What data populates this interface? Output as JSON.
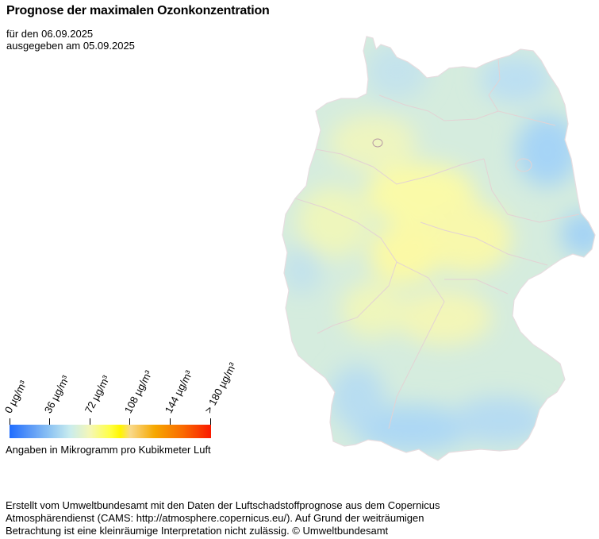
{
  "title": "Prognose der maximalen Ozonkonzentration",
  "subtitle": {
    "forecast_date": "für den 06.09.2025",
    "issued": "ausgegeben am 05.09.2025"
  },
  "legend": {
    "ticks": [
      "0  µg/m³",
      "36  µg/m³",
      "72  µg/m³",
      "108  µg/m³",
      "144  µg/m³",
      "> 180  µg/m³"
    ],
    "tick_values": [
      0,
      36,
      72,
      108,
      144,
      180
    ],
    "max_value": 180,
    "colors": [
      "#1e6cff",
      "#8ec4f3",
      "#c9ecee",
      "#ffff44",
      "#f6a800",
      "#fa1a00"
    ],
    "units_caption": "Angaben in Mikrogramm pro Kubikmeter Luft"
  },
  "map": {
    "region": "Deutschland",
    "base_color": "#d5ecde",
    "low_color": "#a8d6f6",
    "high_color": "#faf8a8",
    "border_color": "#e3d2d4"
  },
  "footer": {
    "line1": "Erstellt vom Umweltbundesamt mit den Daten der Luftschadstoffprognose aus dem Copernicus",
    "line2": "Atmosphärendienst (CAMS: http://atmosphere.copernicus.eu/). Auf Grund der weiträumigen",
    "line3": "Betrachtung ist eine kleinräumige Interpretation nicht zulässig. © Umweltbundesamt"
  }
}
